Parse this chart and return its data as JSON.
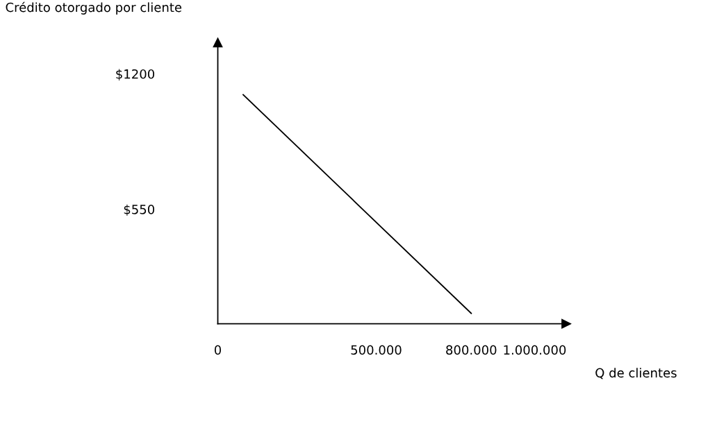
{
  "chart_data": {
    "type": "line",
    "xlabel": "Q de clientes",
    "ylabel": "Crédito otorgado por cliente",
    "x": [
      80000,
      800000
    ],
    "series": [
      {
        "color": "#000000",
        "values": [
          1100,
          50
        ]
      }
    ],
    "xlim": [
      0,
      1100000
    ],
    "xticks": [
      {
        "value": 0,
        "label": "0"
      },
      {
        "value": 500000,
        "label": "500.000"
      },
      {
        "value": 800000,
        "label": "800.000"
      },
      {
        "value": 1000000,
        "label": "1.000.000"
      }
    ],
    "ylim": [
      0,
      1350
    ],
    "yticks": [
      {
        "value": 550,
        "label": "$550"
      },
      {
        "value": 1200,
        "label": "$1200"
      }
    ],
    "grid": false,
    "legend": false,
    "marker": "none",
    "line_style": "solid"
  }
}
